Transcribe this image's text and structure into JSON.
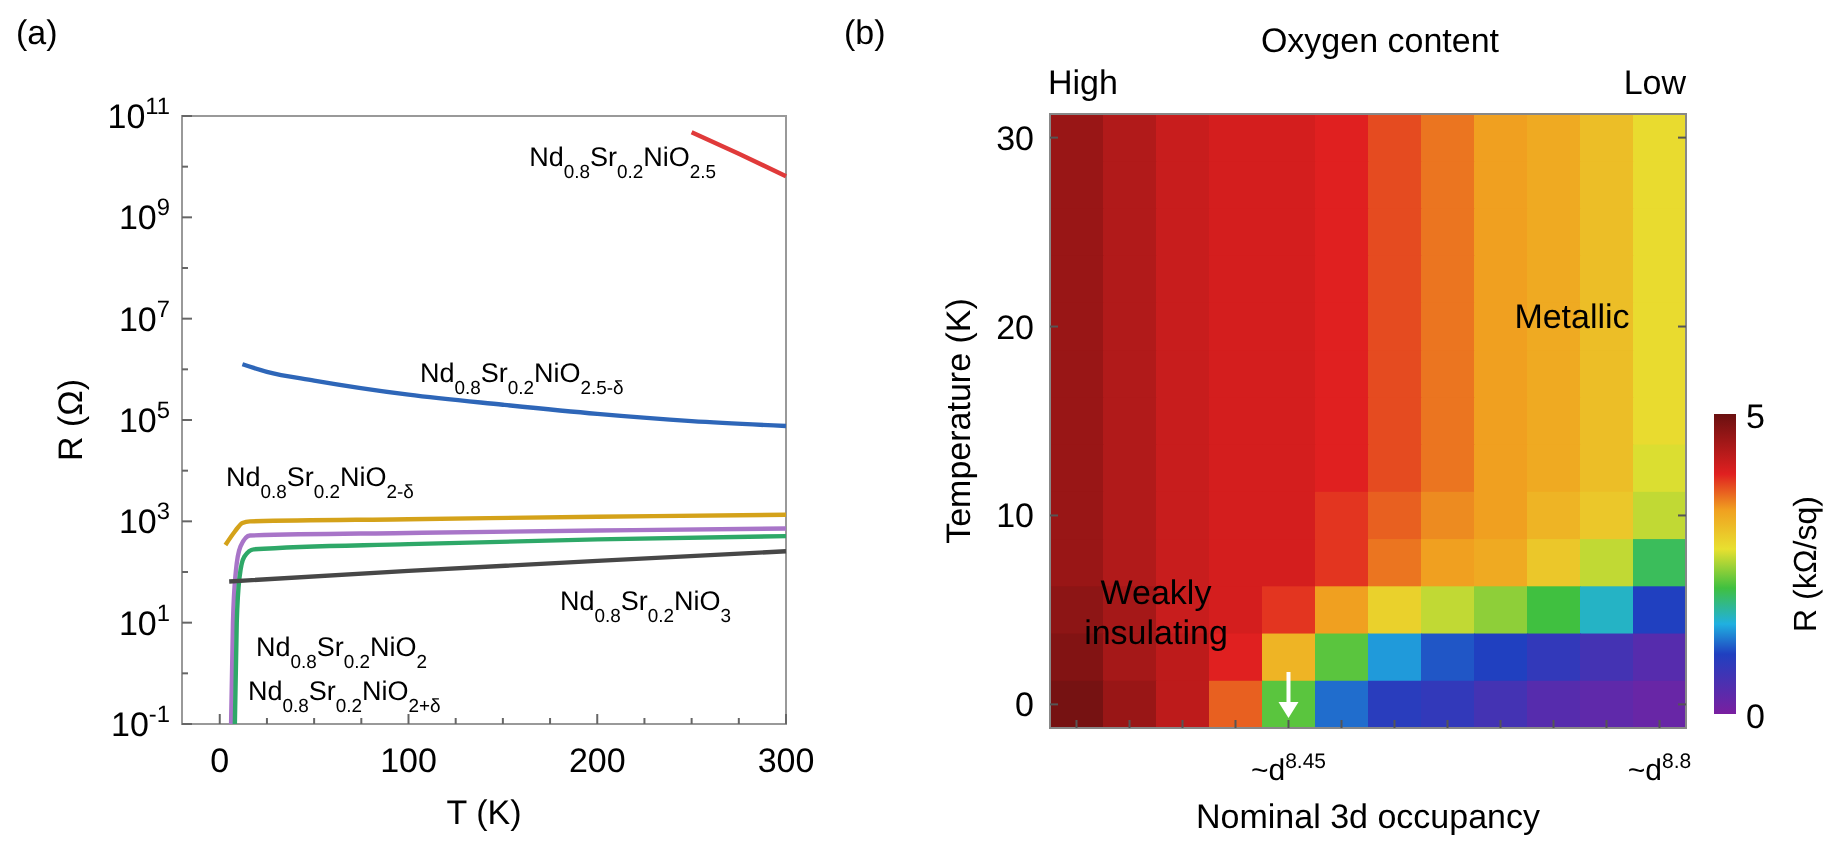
{
  "chart_data": [
    {
      "type": "line",
      "title": "(a)",
      "xlabel": "T (K)",
      "ylabel": "R (Ω)",
      "log": "y",
      "grid": false,
      "line_style": "solid",
      "xlim": [
        -20,
        300
      ],
      "xticks": [
        0,
        {
          "value": 25,
          "label": null
        },
        {
          "value": 50,
          "label": null
        },
        {
          "value": 75,
          "label": null
        },
        100,
        {
          "value": 125,
          "label": null
        },
        {
          "value": 150,
          "label": null
        },
        {
          "value": 175,
          "label": null
        },
        200,
        {
          "value": 225,
          "label": null
        },
        {
          "value": 250,
          "label": null
        },
        {
          "value": 275,
          "label": null
        },
        300
      ],
      "ylim": [
        0.1,
        100000000000
      ],
      "yticks": [
        {
          "value": 0.1,
          "label": "10$^{-1}$"
        },
        {
          "value": 1,
          "label": null
        },
        {
          "value": 10,
          "label": "10$^{1}$"
        },
        {
          "value": 100,
          "label": null
        },
        {
          "value": 1000,
          "label": "10$^{3}$"
        },
        {
          "value": 10000,
          "label": null
        },
        {
          "value": 100000,
          "label": "10$^{5}$"
        },
        {
          "value": 1000000,
          "label": null
        },
        {
          "value": 10000000,
          "label": "10$^{7}$"
        },
        {
          "value": 100000000,
          "label": null
        },
        {
          "value": 1000000000,
          "label": "10$^{9}$"
        },
        {
          "value": 10000000000,
          "label": null
        },
        {
          "value": 100000000000,
          "label": "10$^{11}$"
        }
      ],
      "series": [
        {
          "name": "Nd$_{0.8}$Sr$_{0.2}$NiO$_{2.5}$",
          "color": "#e03a3a",
          "x": [
            250,
            275,
            300
          ],
          "values": [
            48000000000,
            18000000000,
            6500000000
          ]
        },
        {
          "name": "Nd$_{0.8}$Sr$_{0.2}$NiO$_{2.5-δ}$",
          "color": "#2e66b8",
          "x": [
            12,
            25,
            50,
            100,
            150,
            200,
            250,
            300
          ],
          "values": [
            1260000,
            890000,
            600000,
            316000,
            200000,
            132000,
            95000,
            76000
          ]
        },
        {
          "name": "Nd$_{0.8}$Sr$_{0.2}$NiO$_{2-δ}$",
          "color": "#d4a21a",
          "x": [
            3,
            8,
            12,
            16,
            100,
            200,
            300
          ],
          "values": [
            340,
            630,
            930,
            1000,
            1100,
            1230,
            1350
          ]
        },
        {
          "name": "Nd$_{0.8}$Sr$_{0.2}$NiO$_{2+δ}$",
          "color": "#a875c8",
          "x": [
            6,
            7,
            8.5,
            11,
            16,
            100,
            200,
            300
          ],
          "values": [
            0.1,
            10,
            100,
            320,
            525,
            590,
            660,
            720
          ]
        },
        {
          "name": "Nd$_{0.8}$Sr$_{0.2}$NiO$_{2}$",
          "color": "#2ea868",
          "x": [
            8,
            9,
            10.5,
            13,
            18,
            100,
            200,
            300
          ],
          "values": [
            0.1,
            10,
            80,
            200,
            280,
            355,
            440,
            510
          ]
        },
        {
          "name": "Nd$_{0.8}$Sr$_{0.2}$NiO$_{3}$",
          "color": "#474747",
          "x": [
            5,
            100,
            200,
            300
          ],
          "values": [
            65,
            105,
            166,
            257
          ]
        }
      ]
    },
    {
      "type": "heatmap",
      "title": "(b)",
      "xlabel": "Nominal 3d occupancy",
      "ylabel": "Temperature (K)",
      "clabel": "R (kΩ/sq)",
      "categories": [
        null,
        null,
        null,
        null,
        "~d$^{8.45}$",
        null,
        null,
        null,
        null,
        null,
        null,
        "~d$^{8.8}$"
      ],
      "y_categories": [
        "30",
        null,
        null,
        null,
        "20",
        null,
        null,
        null,
        "10",
        null,
        null,
        null,
        "0"
      ],
      "clim": [
        0,
        5
      ],
      "cticks": [
        0,
        5
      ],
      "cells": [
        [
          4.6,
          4.4,
          4.2,
          4.1,
          4.1,
          4.0,
          3.8,
          3.6,
          3.4,
          3.3,
          3.1,
          2.8
        ],
        [
          4.6,
          4.4,
          4.2,
          4.1,
          4.1,
          4.0,
          3.8,
          3.6,
          3.4,
          3.3,
          3.1,
          2.8
        ],
        [
          4.6,
          4.4,
          4.2,
          4.1,
          4.1,
          4.0,
          3.8,
          3.6,
          3.4,
          3.3,
          3.1,
          2.8
        ],
        [
          4.6,
          4.4,
          4.2,
          4.1,
          4.1,
          4.0,
          3.8,
          3.6,
          3.4,
          3.3,
          3.1,
          2.8
        ],
        [
          4.6,
          4.4,
          4.2,
          4.1,
          4.1,
          4.0,
          3.8,
          3.6,
          3.4,
          3.3,
          3.1,
          2.8
        ],
        [
          4.6,
          4.4,
          4.2,
          4.1,
          4.1,
          4.0,
          3.8,
          3.6,
          3.4,
          3.3,
          3.1,
          2.8
        ],
        [
          4.6,
          4.4,
          4.2,
          4.1,
          4.1,
          4.0,
          3.8,
          3.6,
          3.4,
          3.3,
          3.1,
          2.8
        ],
        [
          4.6,
          4.4,
          4.2,
          4.1,
          4.1,
          4.0,
          3.8,
          3.6,
          3.4,
          3.3,
          3.1,
          2.7
        ],
        [
          4.6,
          4.4,
          4.2,
          4.1,
          4.1,
          3.9,
          3.7,
          3.5,
          3.4,
          3.2,
          3.0,
          2.6
        ],
        [
          4.6,
          4.4,
          4.2,
          4.1,
          4.1,
          3.9,
          3.6,
          3.4,
          3.3,
          3.0,
          2.6,
          2.0
        ],
        [
          4.7,
          4.5,
          4.2,
          4.1,
          3.9,
          3.4,
          2.9,
          2.6,
          2.4,
          2.1,
          1.6,
          1.0
        ],
        [
          4.8,
          4.5,
          4.3,
          4.0,
          3.2,
          2.2,
          1.4,
          1.1,
          1.0,
          0.8,
          0.6,
          0.4
        ],
        [
          4.9,
          4.6,
          4.3,
          3.7,
          2.2,
          1.2,
          0.9,
          0.8,
          0.6,
          0.4,
          0.3,
          0.2
        ]
      ],
      "annotations": [
        "Oxygen content",
        "High",
        "Low",
        "Metallic",
        "Weakly\ninsulating"
      ]
    }
  ]
}
